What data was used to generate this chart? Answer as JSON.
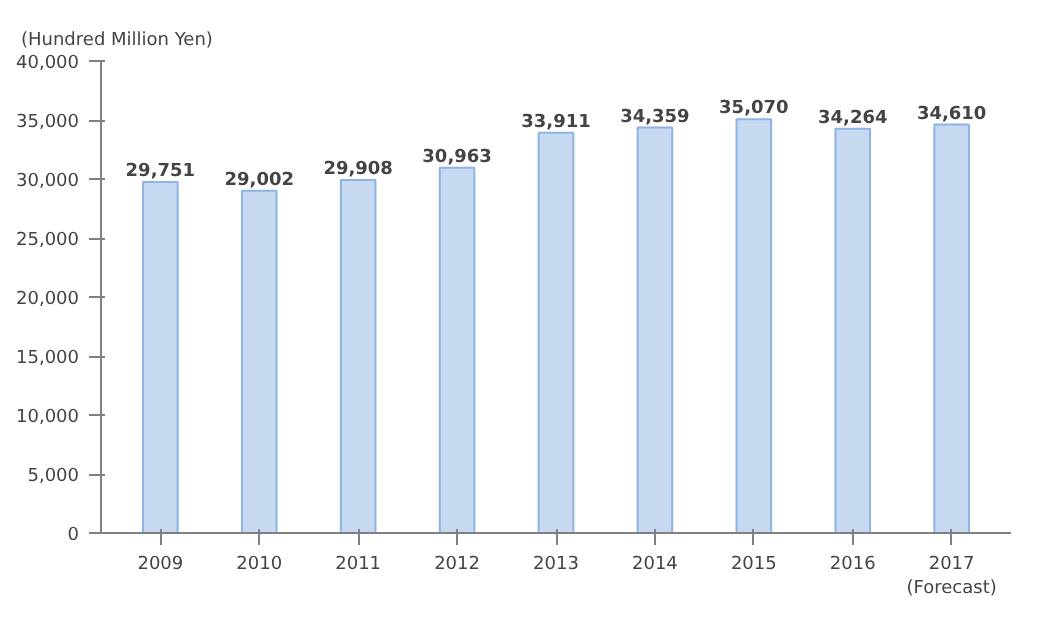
{
  "chart_data": {
    "type": "bar",
    "ylabel": "(Hundred Million Yen)",
    "categories": [
      "2009",
      "2010",
      "2011",
      "2012",
      "2013",
      "2014",
      "2015",
      "2016",
      "2017\n(Forecast)"
    ],
    "values": [
      29751,
      29002,
      29908,
      30963,
      33911,
      34359,
      35070,
      34264,
      34610
    ],
    "value_labels": [
      "29,751",
      "29,002",
      "29,908",
      "30,963",
      "33,911",
      "34,359",
      "35,070",
      "34,264",
      "34,610"
    ],
    "color": "#c6d9f1",
    "ylim": [
      0,
      40000
    ],
    "yticks": [
      {
        "value": 0,
        "label": "0"
      },
      {
        "value": 5000,
        "label": "5,000"
      },
      {
        "value": 10000,
        "label": "10,000"
      },
      {
        "value": 15000,
        "label": "15,000"
      },
      {
        "value": 20000,
        "label": "20,000"
      },
      {
        "value": 25000,
        "label": "25,000"
      },
      {
        "value": 30000,
        "label": "30,000"
      },
      {
        "value": 35000,
        "label": "35,000"
      },
      {
        "value": 40000,
        "label": "40,000"
      }
    ],
    "grid": false
  }
}
